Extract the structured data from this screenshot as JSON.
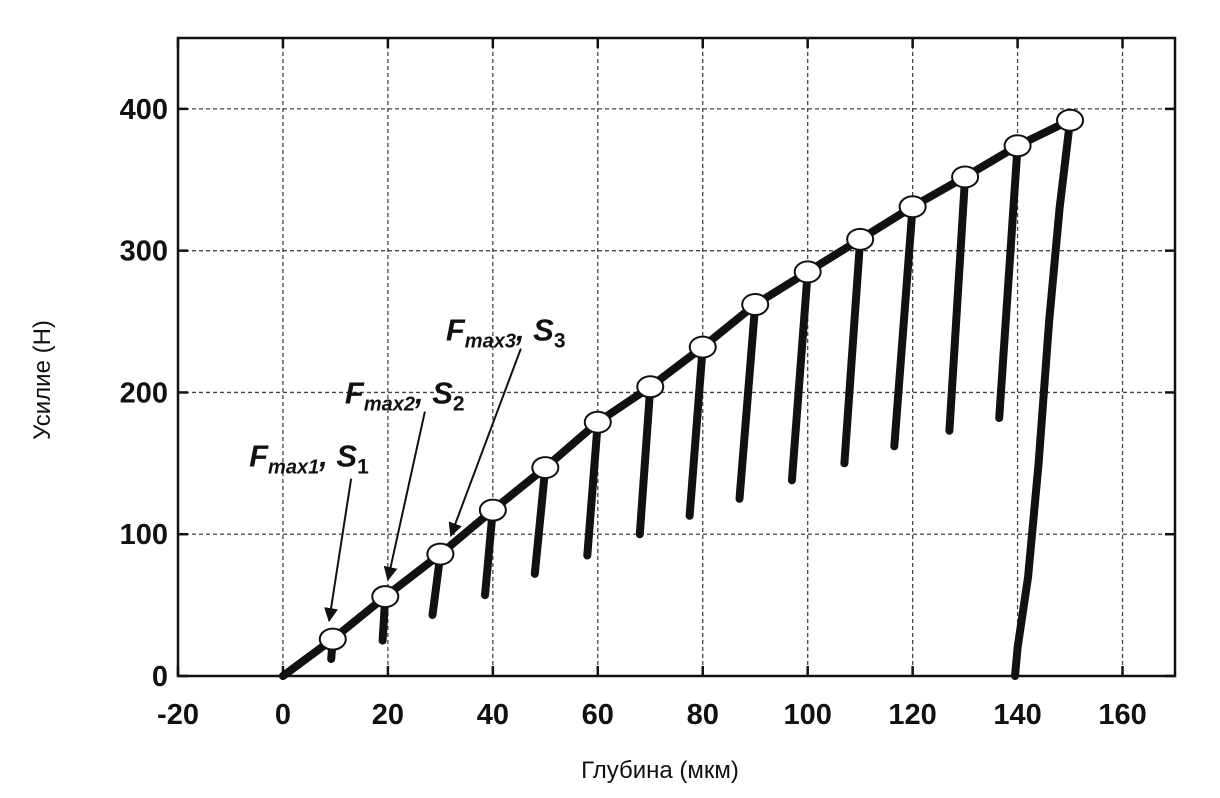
{
  "chart_data": {
    "type": "line",
    "x_label": "Глубина (мкм)",
    "y_label": "Усилие (Н)",
    "xlim": [
      -20,
      170
    ],
    "ylim": [
      0,
      450
    ],
    "xticks": [
      -20,
      0,
      20,
      40,
      60,
      80,
      100,
      120,
      140,
      160
    ],
    "yticks": [
      0,
      100,
      200,
      300,
      400
    ],
    "grid": true,
    "series": [
      {
        "color": "#111111",
        "line": true,
        "x": [
          0,
          9.5,
          19.5,
          30,
          40,
          50,
          60,
          70,
          80,
          90,
          100,
          110,
          120,
          130,
          140,
          150
        ],
        "values": [
          0,
          26,
          56,
          86,
          117,
          147,
          179,
          204,
          232,
          262,
          285,
          308,
          331,
          352,
          374,
          392
        ]
      },
      {
        "color": "#111111",
        "line": true,
        "x": [
          9.5,
          9.2,
          null,
          19.5,
          19,
          null,
          30,
          28.5,
          null,
          40,
          38.5,
          null,
          50,
          48,
          null,
          60,
          58,
          null,
          70,
          68,
          null,
          80,
          77.5,
          null,
          90,
          87,
          null,
          100,
          97,
          null,
          110,
          107,
          null,
          120,
          116.5,
          null,
          130,
          127,
          null,
          140,
          136.5,
          null,
          150,
          148,
          146,
          144,
          142,
          140,
          139.5
        ],
        "values": [
          26,
          12,
          null,
          56,
          25,
          null,
          86,
          43,
          null,
          117,
          57,
          null,
          147,
          72,
          null,
          179,
          85,
          null,
          204,
          100,
          null,
          232,
          113,
          null,
          262,
          125,
          null,
          285,
          138,
          null,
          308,
          150,
          null,
          331,
          162,
          null,
          352,
          173,
          null,
          374,
          182,
          null,
          392,
          330,
          250,
          150,
          70,
          20,
          0
        ]
      },
      {
        "color": "#ffffff",
        "line": false,
        "marker": "circle",
        "x": [
          9.5,
          19.5,
          30,
          40,
          50,
          60,
          70,
          80,
          90,
          100,
          110,
          120,
          130,
          140,
          150
        ],
        "values": [
          26,
          56,
          86,
          117,
          147,
          179,
          204,
          232,
          262,
          285,
          308,
          331,
          352,
          374,
          392
        ]
      }
    ],
    "annotations": [
      {
        "parts": [
          "F",
          "max1",
          ", S",
          "1"
        ],
        "x": 8.8,
        "y": 39
      },
      {
        "parts": [
          "F",
          "max2",
          ", S",
          "2"
        ],
        "x": 20,
        "y": 68
      },
      {
        "parts": [
          "F",
          "max3",
          ", S",
          "3"
        ],
        "x": 32,
        "y": 99
      }
    ]
  }
}
